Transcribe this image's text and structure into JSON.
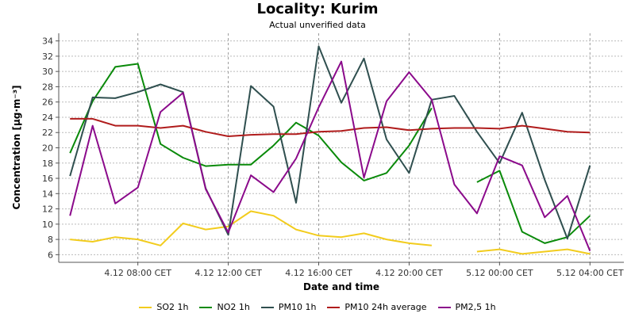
{
  "chart_data": {
    "type": "line",
    "title": "Locality: Kurim",
    "subtitle": "Actual unverified data",
    "xlabel": "Date and time",
    "ylabel": "Concentration [µg·m⁻³]",
    "ylim": [
      5,
      35
    ],
    "y_ticks": [
      6,
      8,
      10,
      12,
      14,
      16,
      18,
      20,
      22,
      24,
      26,
      28,
      30,
      32,
      34
    ],
    "x_ticks": [
      {
        "h": 3,
        "label": "4.12 08:00 CET"
      },
      {
        "h": 7,
        "label": "4.12 12:00 CET"
      },
      {
        "h": 11,
        "label": "4.12 16:00 CET"
      },
      {
        "h": 15,
        "label": "4.12 20:00 CET"
      },
      {
        "h": 19,
        "label": "5.12 00:00 CET"
      },
      {
        "h": 23,
        "label": "5.12 04:00 CET"
      }
    ],
    "x_range": [
      -0.5,
      24.5
    ],
    "grid": true,
    "legend_position": "bottom",
    "series": [
      {
        "name": "SO2 1h",
        "color": "#f2cc1d",
        "values": [
          8.0,
          7.7,
          8.3,
          8.0,
          7.2,
          10.1,
          9.3,
          9.7,
          11.7,
          11.1,
          9.3,
          8.5,
          8.3,
          8.8,
          8.0,
          7.5,
          7.2,
          null,
          6.4,
          6.7,
          6.1,
          6.4,
          6.7,
          6.1
        ]
      },
      {
        "name": "NO2 1h",
        "color": "#0a8a0a",
        "values": [
          19.3,
          26.1,
          30.6,
          31.0,
          20.5,
          18.7,
          17.6,
          17.8,
          17.8,
          20.3,
          23.3,
          21.6,
          18.1,
          15.7,
          16.7,
          20.3,
          25.2,
          null,
          15.5,
          17.0,
          9.0,
          7.5,
          8.3,
          11.1
        ]
      },
      {
        "name": "PM10 1h",
        "color": "#2f4f4f",
        "values": [
          16.3,
          26.6,
          26.5,
          27.3,
          28.3,
          27.3,
          14.7,
          8.6,
          28.1,
          25.4,
          12.8,
          33.3,
          25.9,
          31.7,
          21.1,
          16.7,
          26.3,
          26.8,
          22.1,
          18.0,
          24.6,
          15.8,
          8.1,
          17.7
        ]
      },
      {
        "name": "PM10 24h average",
        "color": "#b01c1c",
        "values": [
          23.8,
          23.8,
          22.9,
          22.9,
          22.6,
          22.9,
          22.1,
          21.5,
          21.7,
          21.8,
          21.8,
          22.1,
          22.2,
          22.6,
          22.7,
          22.3,
          22.5,
          22.6,
          22.6,
          22.5,
          22.9,
          22.5,
          22.1,
          22.0
        ]
      },
      {
        "name": "PM2,5 1h",
        "color": "#8b0a8b",
        "values": [
          11.1,
          22.9,
          12.7,
          14.8,
          24.7,
          27.2,
          14.6,
          8.9,
          16.4,
          14.2,
          18.6,
          25.3,
          31.3,
          16.1,
          26.1,
          29.9,
          26.3,
          15.2,
          11.4,
          18.9,
          17.7,
          10.9,
          13.7,
          6.5
        ]
      }
    ]
  }
}
